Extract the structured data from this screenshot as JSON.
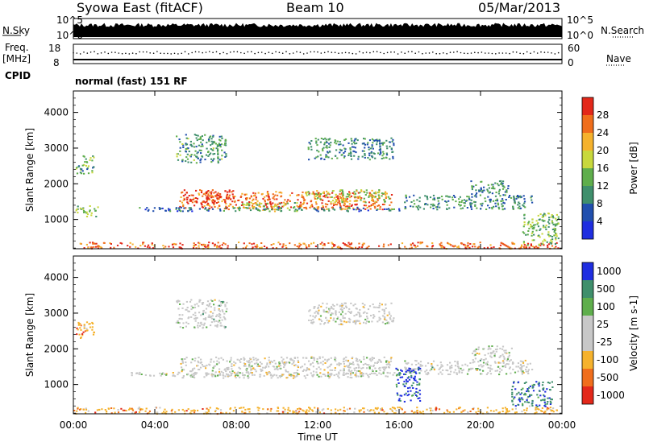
{
  "header": {
    "title": "Syowa East (fitACF)",
    "beam": "Beam 10",
    "date": "05/Mar/2013"
  },
  "strip": {
    "nsky_label": "N.Sky",
    "nsearch_label": "N.Search",
    "count_ticks": [
      "10^5",
      "10^0"
    ],
    "freq_label": "Freq.",
    "freq_unit": "[MHz]",
    "freq_ticks": [
      "18",
      "8"
    ],
    "nave_label": "Nave",
    "nave_ticks": [
      "60",
      "0"
    ],
    "cpid_label": "CPID",
    "cpid_value": "normal (fast) 151 RF"
  },
  "colors": {
    "power_scale": [
      "#1f2ee0",
      "#214fae",
      "#3f8f6c",
      "#5fae4c",
      "#c8d83c",
      "#f5b22d",
      "#f06e1c",
      "#e3281a"
    ],
    "velocity_scale": [
      "#e3281a",
      "#f06e1c",
      "#f5b22d",
      "#c8c8c8",
      "#c8c8c8",
      "#5fae4c",
      "#3f8f6c",
      "#1f2ee0"
    ]
  },
  "chart_data": [
    {
      "type": "heatmap",
      "title": "",
      "xlabel": "Time UT",
      "ylabel": "Slant Range [km]",
      "x_ticks": [
        "00:00",
        "04:00",
        "08:00",
        "12:00",
        "16:00",
        "20:00",
        "00:00"
      ],
      "y_ticks": [
        "1000",
        "2000",
        "3000",
        "4000"
      ],
      "xlim": [
        0,
        24
      ],
      "ylim": [
        180,
        4600
      ],
      "colorbar": {
        "label": "Power [dB]",
        "ticks": [
          "4",
          "8",
          "12",
          "16",
          "20",
          "24",
          "28"
        ]
      },
      "regions": [
        {
          "t": [
            5.2,
            15.6
          ],
          "r": [
            1300,
            1800
          ],
          "level": 0.82
        },
        {
          "t": [
            5.3,
            8.0
          ],
          "r": [
            1500,
            1850
          ],
          "level": 0.95
        },
        {
          "t": [
            8.0,
            11.0
          ],
          "r": [
            1250,
            1500
          ],
          "level": 0.5
        },
        {
          "t": [
            11.2,
            15.5
          ],
          "r": [
            1500,
            1850
          ],
          "level": 0.55
        },
        {
          "t": [
            2.8,
            16.0
          ],
          "r": [
            1250,
            1360
          ],
          "level": 0.25
        },
        {
          "t": [
            0.1,
            1.2
          ],
          "r": [
            1100,
            1400
          ],
          "level": 0.45
        },
        {
          "t": [
            5.0,
            7.5
          ],
          "r": [
            2600,
            3400
          ],
          "level": 0.35
        },
        {
          "t": [
            11.5,
            15.7
          ],
          "r": [
            2700,
            3300
          ],
          "level": 0.3
        },
        {
          "t": [
            16.2,
            22.5
          ],
          "r": [
            1300,
            1700
          ],
          "level": 0.32
        },
        {
          "t": [
            19.5,
            21.5
          ],
          "r": [
            1700,
            2100
          ],
          "level": 0.3
        },
        {
          "t": [
            0.1,
            1.0
          ],
          "r": [
            2300,
            2800
          ],
          "level": 0.4
        },
        {
          "t": [
            0.0,
            23.9
          ],
          "r": [
            200,
            380
          ],
          "level": 0.85
        },
        {
          "t": [
            22.0,
            23.8
          ],
          "r": [
            300,
            1200
          ],
          "level": 0.45
        }
      ]
    },
    {
      "type": "heatmap",
      "title": "",
      "xlabel": "Time UT",
      "ylabel": "Slant Range [km]",
      "x_ticks": [
        "00:00",
        "04:00",
        "08:00",
        "12:00",
        "16:00",
        "20:00",
        "00:00"
      ],
      "y_ticks": [
        "1000",
        "2000",
        "3000",
        "4000"
      ],
      "xlim": [
        0,
        24
      ],
      "ylim": [
        180,
        4600
      ],
      "colorbar": {
        "label": "Velocity [m s-1]",
        "ticks": [
          "1000",
          "500",
          "100",
          "25",
          "-25",
          "-100",
          "-500",
          "-1000"
        ]
      },
      "regions": [
        {
          "t": [
            5.2,
            15.6
          ],
          "r": [
            1200,
            1800
          ],
          "level": 0.5
        },
        {
          "t": [
            2.8,
            16.0
          ],
          "r": [
            1250,
            1360
          ],
          "level": 0.5
        },
        {
          "t": [
            5.0,
            7.5
          ],
          "r": [
            2600,
            3400
          ],
          "level": 0.55
        },
        {
          "t": [
            11.5,
            15.7
          ],
          "r": [
            2700,
            3300
          ],
          "level": 0.5
        },
        {
          "t": [
            16.2,
            22.5
          ],
          "r": [
            1300,
            1700
          ],
          "level": 0.55
        },
        {
          "t": [
            19.5,
            21.5
          ],
          "r": [
            1700,
            2100
          ],
          "level": 0.5
        },
        {
          "t": [
            0.1,
            1.0
          ],
          "r": [
            2300,
            2800
          ],
          "level": 0.3
        },
        {
          "t": [
            0.0,
            23.9
          ],
          "r": [
            200,
            380
          ],
          "level": 0.3
        },
        {
          "t": [
            15.8,
            17.0
          ],
          "r": [
            500,
            1500
          ],
          "level": 0.9
        },
        {
          "t": [
            21.5,
            23.5
          ],
          "r": [
            400,
            1100
          ],
          "level": 0.85
        }
      ]
    }
  ]
}
